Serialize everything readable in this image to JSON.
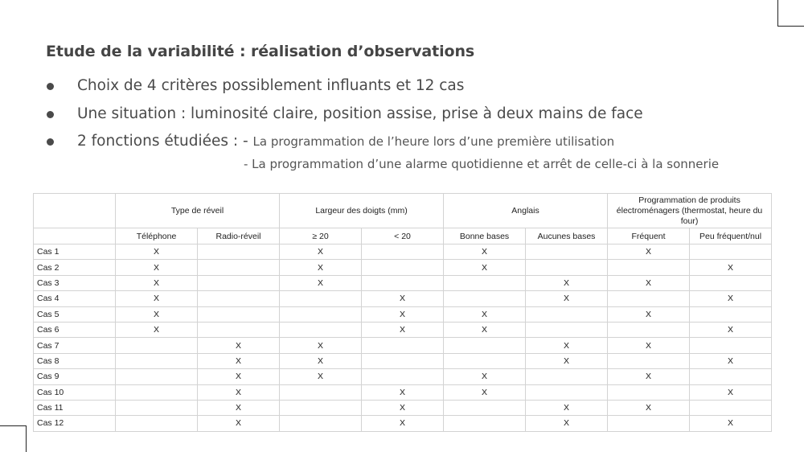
{
  "title": "Etude de la variabilité : réalisation d’observations",
  "bullets": [
    "Choix de 4 critères possiblement influants et 12 cas",
    "Une situation : luminosité claire, position assise, prise à deux mains de face",
    "2 fonctions étudiées : -"
  ],
  "functions": [
    "La programmation de l’heure lors d’une première utilisation",
    "- La programmation d’une alarme quotidienne et arrêt de celle-ci à la sonnerie"
  ],
  "table": {
    "groups": [
      "Type de réveil",
      "Largeur des doigts (mm)",
      "Anglais",
      "Programmation de produits électroménagers (thermostat, heure du four)"
    ],
    "subheaders": [
      "Téléphone",
      "Radio-réveil",
      "≥ 20",
      "< 20",
      "Bonne bases",
      "Aucunes bases",
      "Fréquent",
      "Peu fréquent/nul"
    ],
    "rows": [
      {
        "label": "Cas 1",
        "cells": [
          "X",
          "",
          "X",
          "",
          "X",
          "",
          "X",
          ""
        ]
      },
      {
        "label": "Cas 2",
        "cells": [
          "X",
          "",
          "X",
          "",
          "X",
          "",
          "",
          "X"
        ]
      },
      {
        "label": "Cas 3",
        "cells": [
          "X",
          "",
          "X",
          "",
          "",
          "X",
          "X",
          ""
        ]
      },
      {
        "label": "Cas 4",
        "cells": [
          "X",
          "",
          "",
          "X",
          "",
          "X",
          "",
          "X"
        ]
      },
      {
        "label": "Cas 5",
        "cells": [
          "X",
          "",
          "",
          "X",
          "X",
          "",
          "X",
          ""
        ]
      },
      {
        "label": "Cas 6",
        "cells": [
          "X",
          "",
          "",
          "X",
          "X",
          "",
          "",
          "X"
        ]
      },
      {
        "label": "Cas 7",
        "cells": [
          "",
          "X",
          "X",
          "",
          "",
          "X",
          "X",
          ""
        ]
      },
      {
        "label": "Cas 8",
        "cells": [
          "",
          "X",
          "X",
          "",
          "",
          "X",
          "",
          "X"
        ]
      },
      {
        "label": "Cas 9",
        "cells": [
          "",
          "X",
          "X",
          "",
          "X",
          "",
          "X",
          ""
        ]
      },
      {
        "label": "Cas 10",
        "cells": [
          "",
          "X",
          "",
          "X",
          "X",
          "",
          "",
          "X"
        ]
      },
      {
        "label": "Cas 11",
        "cells": [
          "",
          "X",
          "",
          "X",
          "",
          "X",
          "X",
          ""
        ]
      },
      {
        "label": "Cas 12",
        "cells": [
          "",
          "X",
          "",
          "X",
          "",
          "X",
          "",
          "X"
        ]
      }
    ]
  }
}
